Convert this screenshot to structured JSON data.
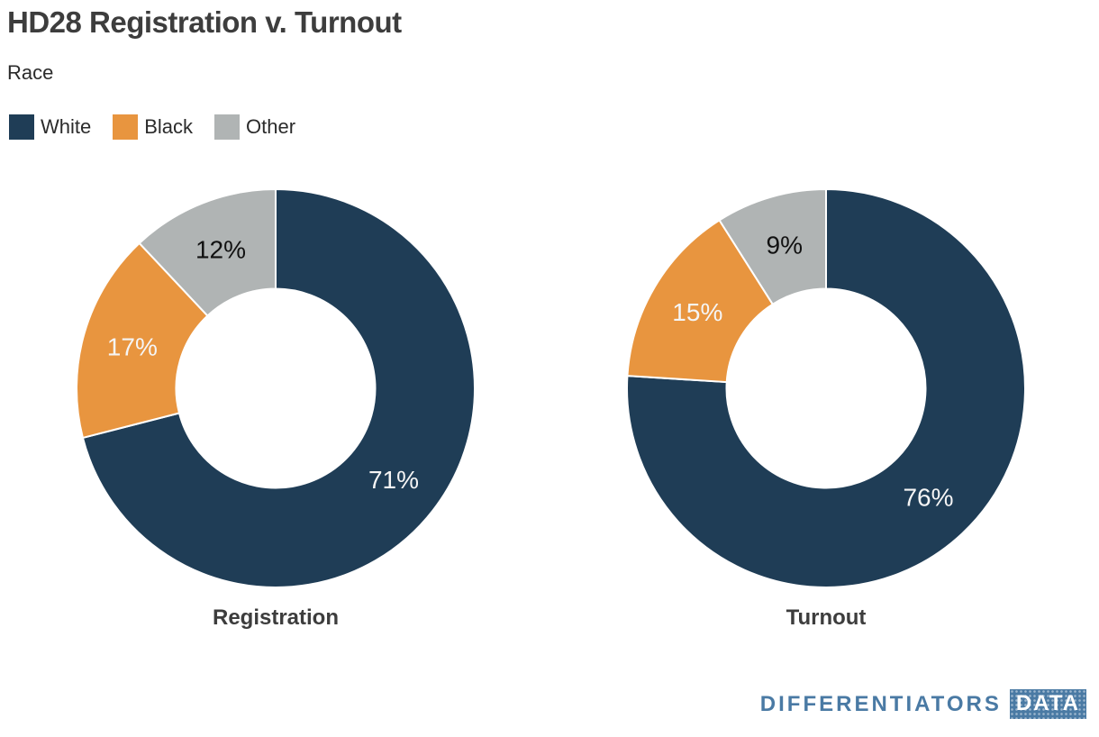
{
  "header": {
    "title": "HD28 Registration v. Turnout",
    "subtitle": "Race"
  },
  "chart_data": {
    "type": "pie",
    "variant": "donut",
    "title": "HD28 Registration v. Turnout",
    "subtitle": "Race",
    "legend": [
      "White",
      "Black",
      "Other"
    ],
    "colors": [
      "#1f3d56",
      "#e8953f",
      "#b0b4b4"
    ],
    "slice_label_colors": [
      "#f5f5f5",
      "#f5f5f5",
      "#111111"
    ],
    "start_angle_deg": 0,
    "direction": "clockwise",
    "inner_radius_ratio": 0.5,
    "legend_position": "top-left",
    "charts": [
      {
        "label": "Registration",
        "categories": [
          "White",
          "Black",
          "Other"
        ],
        "values": [
          71,
          17,
          12
        ],
        "value_labels": [
          "71%",
          "17%",
          "12%"
        ]
      },
      {
        "label": "Turnout",
        "categories": [
          "White",
          "Black",
          "Other"
        ],
        "values": [
          76,
          15,
          9
        ],
        "value_labels": [
          "76%",
          "15%",
          "9%"
        ]
      }
    ]
  },
  "footer": {
    "brand_text": "DIFFERENTIATORS",
    "brand_badge": "DATA",
    "brand_color": "#4a7aa4"
  }
}
